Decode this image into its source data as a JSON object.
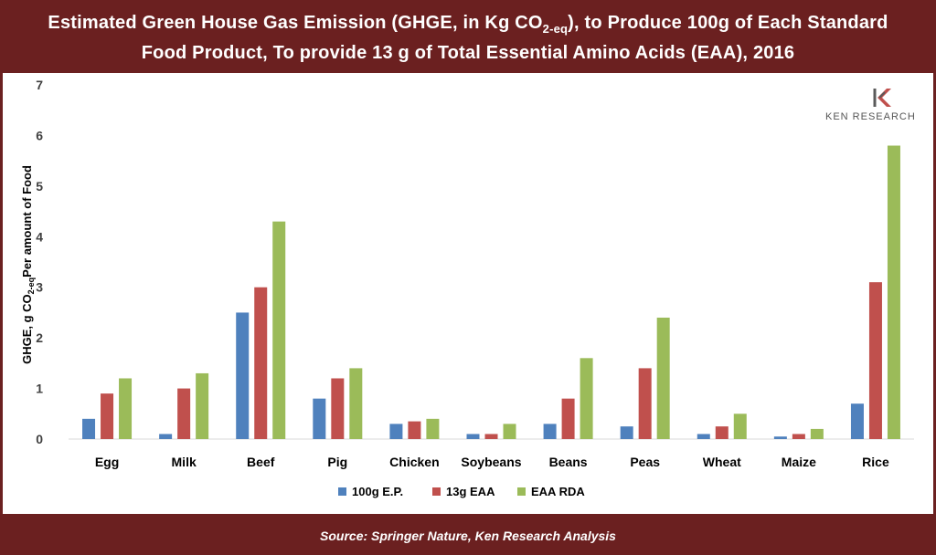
{
  "header": {
    "title_line1_a": "Estimated Green House Gas Emission (GHGE, in Kg CO",
    "title_line1_sub": "2-eq",
    "title_line1_b": "), to Produce 100g of Each Standard",
    "title_line2": "Food Product, To provide 13 g of Total Essential Amino Acids (EAA), 2016"
  },
  "logo": {
    "text": "KEN RESEARCH",
    "icon": "ken-research-logo-icon"
  },
  "footer": {
    "source": "Source:  Springer Nature, Ken Research Analysis"
  },
  "colors": {
    "frame": "#6b2020",
    "series1": "#4f81bd",
    "series2": "#c0504d",
    "series3": "#9bbb59"
  },
  "chart_data": {
    "type": "bar",
    "categories": [
      "Egg",
      "Milk",
      "Beef",
      "Pig",
      "Chicken",
      "Soybeans",
      "Beans",
      "Peas",
      "Wheat",
      "Maize",
      "Rice"
    ],
    "series": [
      {
        "name": "100g E.P.",
        "color": "#4f81bd",
        "values": [
          0.4,
          0.1,
          2.5,
          0.8,
          0.3,
          0.1,
          0.3,
          0.25,
          0.1,
          0.05,
          0.7
        ]
      },
      {
        "name": "13g EAA",
        "color": "#c0504d",
        "values": [
          0.9,
          1.0,
          3.0,
          1.2,
          0.35,
          0.1,
          0.8,
          1.4,
          0.25,
          0.1,
          3.1
        ]
      },
      {
        "name": "EAA RDA",
        "color": "#9bbb59",
        "values": [
          1.2,
          1.3,
          4.3,
          1.4,
          0.4,
          0.3,
          1.6,
          2.4,
          0.5,
          0.2,
          5.8
        ]
      }
    ],
    "ylabel_a": "GHGE, g CO",
    "ylabel_sub": "2-eq",
    "ylabel_b": "Per amount of Food",
    "yticks": [
      "0",
      "1",
      "2",
      "3",
      "4",
      "5",
      "6",
      "7"
    ],
    "ylim": [
      0,
      7
    ],
    "grid": false,
    "legend_position": "bottom"
  }
}
